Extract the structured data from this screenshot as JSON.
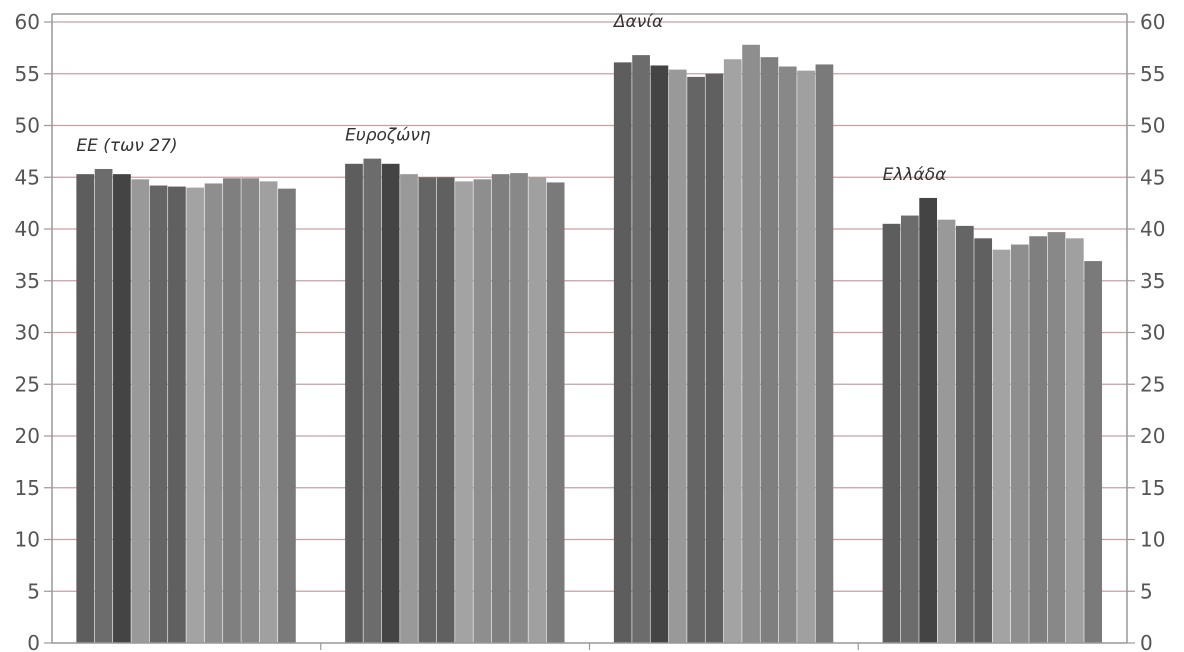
{
  "chart_data": {
    "type": "bar",
    "title": "",
    "xlabel": "",
    "ylabel": "",
    "ylim": [
      0,
      60
    ],
    "yticks": [
      0,
      5,
      10,
      15,
      20,
      25,
      30,
      35,
      40,
      45,
      50,
      55,
      60
    ],
    "grid": true,
    "dual_y_axis": true,
    "groups": [
      {
        "label": "ΕΕ (των 27)",
        "values": [
          45.3,
          45.8,
          45.3,
          44.8,
          44.2,
          44.1,
          44.0,
          44.4,
          44.9,
          44.9,
          44.6,
          43.9
        ]
      },
      {
        "label": "Ευροζώνη",
        "values": [
          46.3,
          46.8,
          46.3,
          45.3,
          45.0,
          45.0,
          44.6,
          44.8,
          45.3,
          45.4,
          45.0,
          44.5
        ]
      },
      {
        "label": "Δανία",
        "values": [
          56.1,
          56.8,
          55.8,
          55.4,
          54.7,
          55.0,
          56.4,
          57.8,
          56.6,
          55.7,
          55.3,
          55.9
        ]
      },
      {
        "label": "Ελλάδα",
        "values": [
          40.5,
          41.3,
          43.0,
          40.9,
          40.3,
          39.1,
          38.0,
          38.5,
          39.3,
          39.7,
          39.1,
          36.9
        ]
      }
    ],
    "bar_colors": [
      "#5d5d5d",
      "#6c6c6c",
      "#444444",
      "#999999",
      "#656565",
      "#606060",
      "#a3a3a3",
      "#8e8e8e",
      "#7f7f7f",
      "#888888",
      "#a0a0a0",
      "#7a7a7a"
    ]
  }
}
